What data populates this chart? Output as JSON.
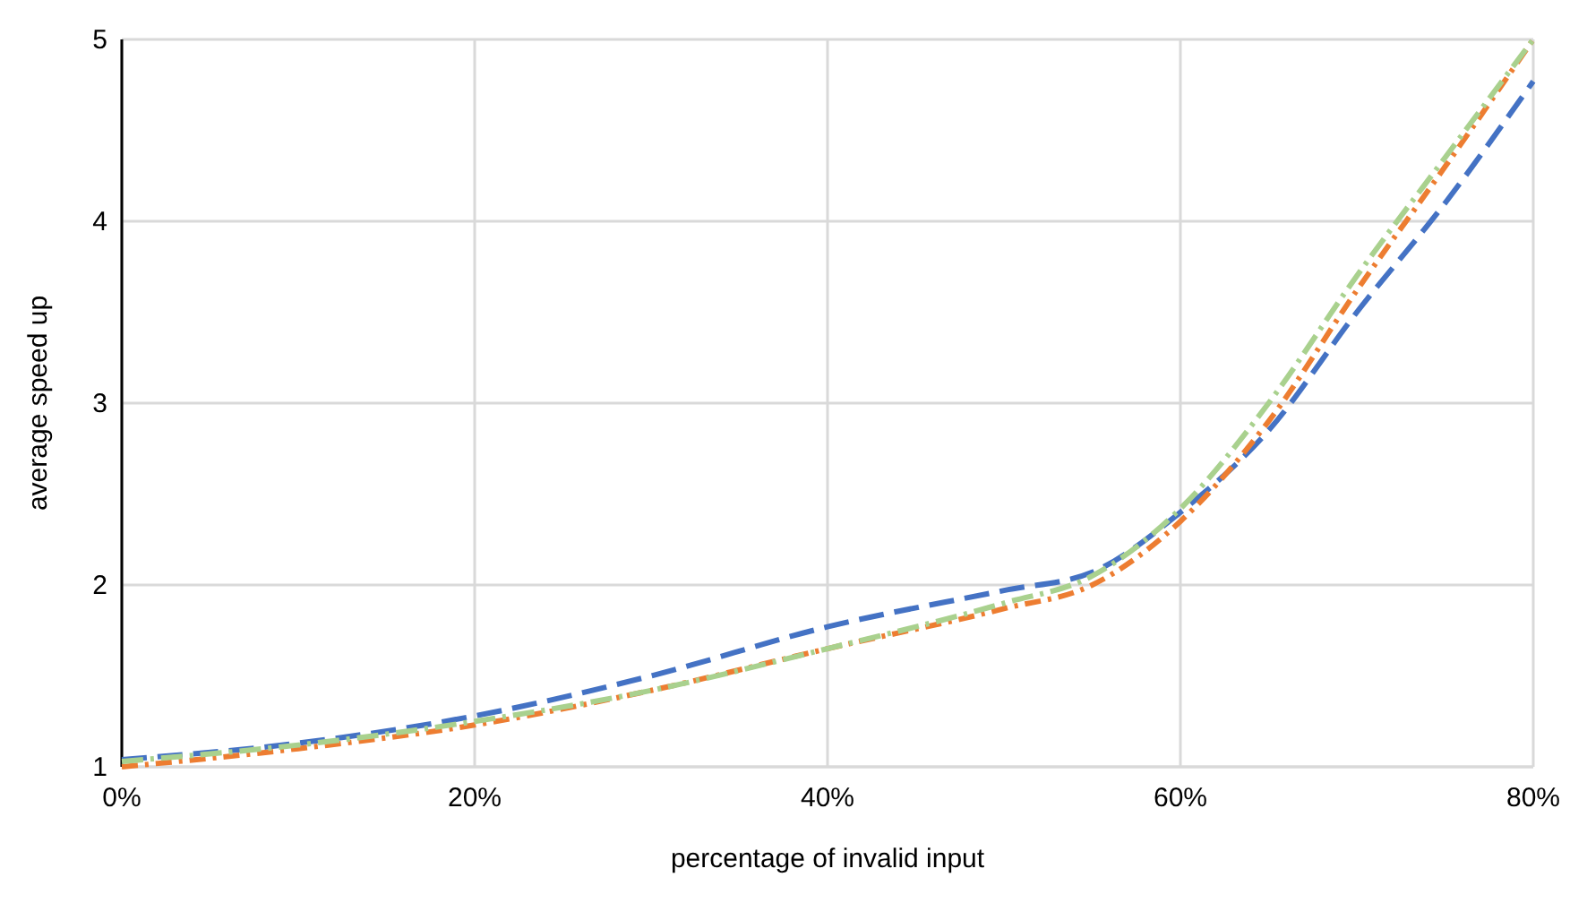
{
  "chart_data": {
    "type": "line",
    "xlabel": "percentage of invalid input",
    "ylabel": "average speed up",
    "x": [
      0,
      0.1,
      0.2,
      0.3,
      0.4,
      0.5,
      0.55,
      0.6,
      0.65,
      0.7,
      0.75,
      0.8
    ],
    "series": [
      {
        "color": "#4472c4",
        "values": [
          1.04,
          1.13,
          1.28,
          1.5,
          1.77,
          1.97,
          2.07,
          2.4,
          2.85,
          3.5,
          4.1,
          4.77
        ]
      },
      {
        "color": "#ed7d31",
        "values": [
          1.0,
          1.1,
          1.23,
          1.42,
          1.65,
          1.87,
          2.0,
          2.35,
          2.9,
          3.62,
          4.3,
          5.0
        ]
      },
      {
        "color": "#a9d18e",
        "values": [
          1.03,
          1.12,
          1.25,
          1.42,
          1.65,
          1.9,
          2.05,
          2.42,
          3.0,
          3.7,
          4.35,
          5.0
        ]
      }
    ],
    "xlim": [
      0,
      0.8
    ],
    "xticks": [
      {
        "value": 0,
        "label": "0%"
      },
      {
        "value": 0.2,
        "label": "20%"
      },
      {
        "value": 0.4,
        "label": "40%"
      },
      {
        "value": 0.6,
        "label": "60%"
      },
      {
        "value": 0.8,
        "label": "80%"
      }
    ],
    "ylim": [
      1,
      5
    ],
    "yticks": [
      1,
      2,
      3,
      4,
      5
    ],
    "grid": true,
    "line_style": "dashed",
    "marker": "none"
  }
}
